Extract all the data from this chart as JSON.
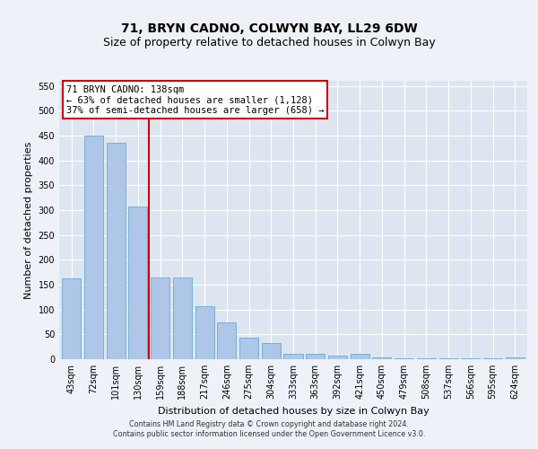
{
  "title": "71, BRYN CADNO, COLWYN BAY, LL29 6DW",
  "subtitle": "Size of property relative to detached houses in Colwyn Bay",
  "xlabel": "Distribution of detached houses by size in Colwyn Bay",
  "ylabel": "Number of detached properties",
  "categories": [
    "43sqm",
    "72sqm",
    "101sqm",
    "130sqm",
    "159sqm",
    "188sqm",
    "217sqm",
    "246sqm",
    "275sqm",
    "304sqm",
    "333sqm",
    "363sqm",
    "392sqm",
    "421sqm",
    "450sqm",
    "479sqm",
    "508sqm",
    "537sqm",
    "566sqm",
    "595sqm",
    "624sqm"
  ],
  "values": [
    163,
    450,
    435,
    307,
    165,
    165,
    106,
    74,
    43,
    33,
    10,
    10,
    7,
    10,
    4,
    2,
    2,
    1,
    1,
    1,
    3
  ],
  "bar_color": "#aec6e8",
  "bar_edge_color": "#6aaad4",
  "vline_x_index": 3.5,
  "vline_color": "#cc0000",
  "annotation_line1": "71 BRYN CADNO: 138sqm",
  "annotation_line2": "← 63% of detached houses are smaller (1,128)",
  "annotation_line3": "37% of semi-detached houses are larger (658) →",
  "annotation_box_facecolor": "#ffffff",
  "annotation_box_edgecolor": "#cc0000",
  "ylim": [
    0,
    560
  ],
  "yticks": [
    0,
    50,
    100,
    150,
    200,
    250,
    300,
    350,
    400,
    450,
    500,
    550
  ],
  "footer_line1": "Contains HM Land Registry data © Crown copyright and database right 2024.",
  "footer_line2": "Contains public sector information licensed under the Open Government Licence v3.0.",
  "fig_bg_color": "#eef2f8",
  "plot_bg_color": "#dde6f0",
  "title_fontsize": 10,
  "subtitle_fontsize": 9,
  "ylabel_fontsize": 8,
  "xlabel_fontsize": 8,
  "tick_fontsize": 7,
  "footer_fontsize": 5.8
}
